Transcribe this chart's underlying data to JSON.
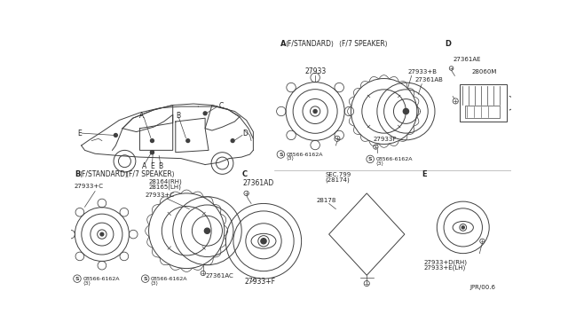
{
  "bg_color": "#ffffff",
  "line_color": "#404040",
  "text_color": "#222222",
  "fig_width": 6.4,
  "fig_height": 3.72,
  "sections": {
    "A_label": "A  ⟨F/STANDARD⟩   ⟨F/7 SPEAKER⟩",
    "B_label": "B  ⟨F/STANDARD⟩    ⟨F/7 SPEAKER⟩",
    "C_label": "C",
    "D_label": "D",
    "E_label": "E",
    "ref": "JPR/00.6",
    "part_27933": "27933",
    "part_27933B": "27933+B",
    "part_27361AB": "27361AB",
    "part_27933F": "27933F",
    "part_27361AE": "27361AE",
    "part_28060M": "28060M",
    "part_27933C": "27933+C",
    "part_28164": "28164(RH)",
    "part_28165": "28165(LH)",
    "part_27361AC": "27361AC",
    "part_27361AD": "27361AD",
    "part_27933F2": "27933+F",
    "part_SEC799": "SEC.799",
    "part_28174": "(28174)",
    "part_28178": "28178",
    "part_27933D": "27933+D(RH)",
    "part_27933E": "27933+E(LH)",
    "screw": "08566-6162A",
    "screw_n": "⟨3⟩"
  }
}
